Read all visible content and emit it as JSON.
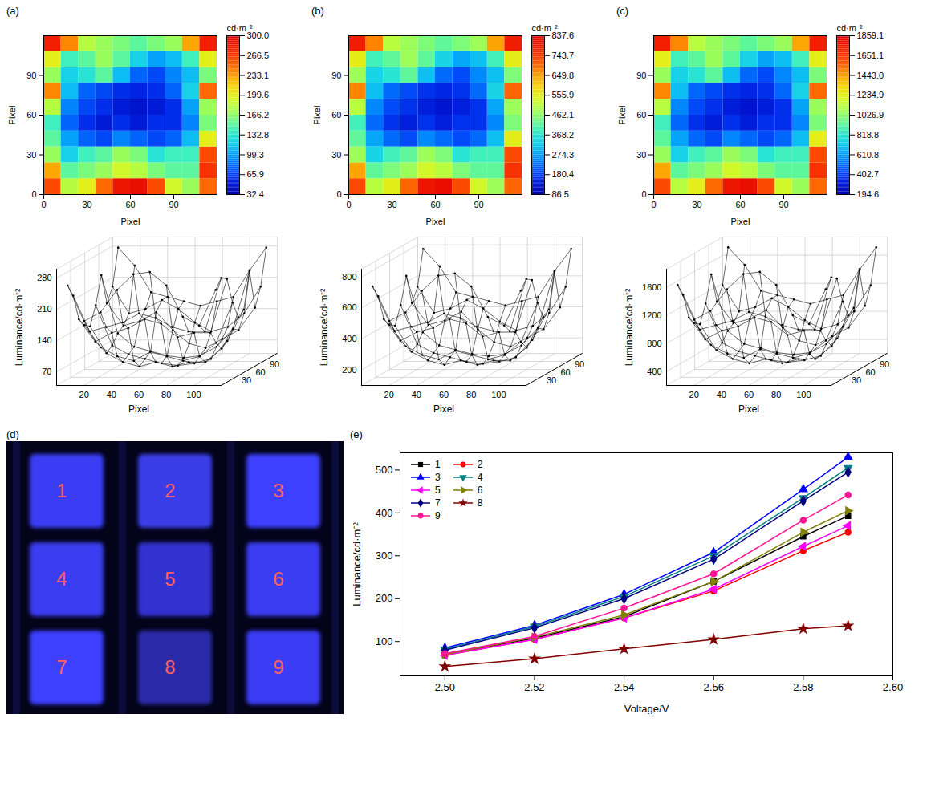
{
  "chart_data": [
    {
      "panel": "(a)",
      "type": "heatmap",
      "xlabel": "Pixel",
      "ylabel": "Pixel",
      "xlim": [
        0,
        120
      ],
      "ylim": [
        0,
        120
      ],
      "xticks": [
        0,
        30,
        60,
        90
      ],
      "yticks": [
        0,
        30,
        60,
        90
      ],
      "x": [
        6,
        18,
        30,
        42,
        54,
        66,
        78,
        90,
        102,
        114
      ],
      "y": [
        6,
        18,
        30,
        42,
        54,
        66,
        78,
        90,
        102,
        114
      ],
      "z": [
        [
          260,
          180,
          200,
          250,
          285,
          290,
          260,
          190,
          170,
          250
        ],
        [
          230,
          150,
          160,
          170,
          190,
          180,
          160,
          150,
          150,
          270
        ],
        [
          170,
          120,
          140,
          150,
          170,
          160,
          130,
          140,
          140,
          260
        ],
        [
          150,
          100,
          80,
          70,
          90,
          80,
          70,
          80,
          110,
          200
        ],
        [
          140,
          80,
          60,
          50,
          60,
          50,
          60,
          60,
          90,
          160
        ],
        [
          180,
          90,
          70,
          60,
          50,
          45,
          50,
          60,
          100,
          170
        ],
        [
          240,
          110,
          80,
          70,
          60,
          55,
          60,
          80,
          120,
          250
        ],
        [
          170,
          120,
          130,
          150,
          110,
          80,
          70,
          90,
          110,
          160
        ],
        [
          200,
          140,
          150,
          170,
          150,
          120,
          100,
          110,
          140,
          200
        ],
        [
          280,
          240,
          180,
          170,
          160,
          150,
          160,
          170,
          230,
          280
        ]
      ],
      "colorbar": {
        "label": "cd·m⁻²",
        "range": [
          32.4,
          300
        ],
        "ticks": [
          32.4,
          65.9,
          99.3,
          132.8,
          166.2,
          199.6,
          233.1,
          266.5,
          {
            "value": 300,
            "label": "300.0"
          }
        ]
      },
      "scatter3d": {
        "xlabel": "Pixel",
        "zlabel": "Luminance/cd·m⁻²",
        "xlim": [
          0,
          120
        ],
        "ylim": [
          0,
          120
        ],
        "zlim": [
          40,
          300
        ],
        "xticks": [
          20,
          40,
          60,
          80,
          100
        ],
        "yticks": [
          30,
          60,
          90
        ],
        "zticks": [
          70,
          140,
          210,
          280
        ]
      }
    },
    {
      "panel": "(b)",
      "type": "heatmap",
      "xlabel": "Pixel",
      "ylabel": "Pixel",
      "xlim": [
        0,
        120
      ],
      "ylim": [
        0,
        120
      ],
      "xticks": [
        0,
        30,
        60,
        90
      ],
      "yticks": [
        0,
        30,
        60,
        90
      ],
      "x": [
        6,
        18,
        30,
        42,
        54,
        66,
        78,
        90,
        102,
        114
      ],
      "y": [
        6,
        18,
        30,
        42,
        54,
        66,
        78,
        90,
        102,
        114
      ],
      "z": [
        [
          728,
          504,
          560,
          700,
          798,
          812,
          728,
          532,
          476,
          700
        ],
        [
          644,
          420,
          448,
          476,
          532,
          504,
          448,
          420,
          420,
          756
        ],
        [
          476,
          336,
          392,
          420,
          476,
          448,
          364,
          392,
          392,
          728
        ],
        [
          420,
          280,
          224,
          196,
          252,
          224,
          196,
          224,
          308,
          560
        ],
        [
          392,
          224,
          168,
          140,
          168,
          140,
          168,
          168,
          252,
          448
        ],
        [
          504,
          252,
          196,
          168,
          140,
          126,
          140,
          168,
          280,
          476
        ],
        [
          672,
          308,
          224,
          196,
          168,
          154,
          168,
          224,
          336,
          700
        ],
        [
          476,
          336,
          364,
          420,
          308,
          224,
          196,
          252,
          308,
          448
        ],
        [
          560,
          392,
          420,
          476,
          420,
          336,
          280,
          308,
          392,
          560
        ],
        [
          784,
          672,
          504,
          476,
          448,
          420,
          448,
          476,
          644,
          784
        ]
      ],
      "colorbar": {
        "label": "cd·m⁻²",
        "range": [
          86.5,
          837.6
        ],
        "ticks": [
          86.5,
          180.4,
          274.3,
          368.2,
          462.1,
          555.9,
          649.8,
          743.7,
          837.6
        ]
      },
      "scatter3d": {
        "xlabel": "Pixel",
        "zlabel": "Luminance/cd·m⁻²",
        "xlim": [
          0,
          120
        ],
        "ylim": [
          0,
          120
        ],
        "zlim": [
          100,
          850
        ],
        "xticks": [
          20,
          40,
          60,
          80,
          100
        ],
        "yticks": [
          30,
          60,
          90
        ],
        "zticks": [
          200,
          400,
          600,
          800
        ]
      }
    },
    {
      "panel": "(c)",
      "type": "heatmap",
      "xlabel": "Pixel",
      "ylabel": "Pixel",
      "xlim": [
        0,
        120
      ],
      "ylim": [
        0,
        120
      ],
      "xticks": [
        0,
        30,
        60,
        90
      ],
      "yticks": [
        0,
        30,
        60,
        90
      ],
      "x": [
        6,
        18,
        30,
        42,
        54,
        66,
        78,
        90,
        102,
        114
      ],
      "y": [
        6,
        18,
        30,
        42,
        54,
        66,
        78,
        90,
        102,
        114
      ],
      "z": [
        [
          1612,
          1116,
          1240,
          1550,
          1767,
          1798,
          1612,
          1178,
          1054,
          1550
        ],
        [
          1426,
          930,
          992,
          1054,
          1178,
          1116,
          992,
          930,
          930,
          1674
        ],
        [
          1054,
          744,
          868,
          930,
          1054,
          992,
          806,
          868,
          868,
          1612
        ],
        [
          930,
          620,
          496,
          434,
          558,
          496,
          434,
          496,
          682,
          1240
        ],
        [
          868,
          496,
          372,
          310,
          372,
          310,
          372,
          372,
          558,
          992
        ],
        [
          1116,
          558,
          434,
          372,
          310,
          279,
          310,
          372,
          620,
          1054
        ],
        [
          1488,
          682,
          496,
          434,
          372,
          341,
          372,
          496,
          744,
          1550
        ],
        [
          1054,
          744,
          806,
          930,
          682,
          496,
          434,
          558,
          682,
          992
        ],
        [
          1240,
          868,
          930,
          1054,
          930,
          744,
          620,
          682,
          868,
          1240
        ],
        [
          1736,
          1488,
          1116,
          1054,
          992,
          930,
          992,
          1054,
          1426,
          1736
        ]
      ],
      "colorbar": {
        "label": "cd·m⁻²",
        "range": [
          194.6,
          1859.1
        ],
        "ticks": [
          194.6,
          402.7,
          610.8,
          818.8,
          1026.9,
          1234.9,
          {
            "value": 1443,
            "label": "1443.0"
          },
          1651.1,
          1859.1
        ]
      },
      "scatter3d": {
        "xlabel": "Pixel",
        "zlabel": "Luminance/cd·m⁻²",
        "xlim": [
          0,
          120
        ],
        "ylim": [
          0,
          120
        ],
        "zlim": [
          200,
          1860
        ],
        "xticks": [
          20,
          40,
          60,
          80,
          100
        ],
        "yticks": [
          30,
          60,
          90
        ],
        "zticks": [
          400,
          800,
          1200,
          1600
        ]
      }
    },
    {
      "panel": "(d)",
      "type": "image",
      "labels": [
        "1",
        "2",
        "3",
        "4",
        "5",
        "6",
        "7",
        "8",
        "9"
      ],
      "colors": [
        "#3a3cf5",
        "#3a3ce8",
        "#3c40ff",
        "#3a3ef0",
        "#3032d0",
        "#3a3ef2",
        "#3c40ff",
        "#2a2ca8",
        "#3a3ef5"
      ]
    },
    {
      "panel": "(e)",
      "type": "line",
      "xlabel": "Voltage/V",
      "ylabel": "Luminance/cd·m⁻²",
      "x": [
        2.5,
        2.52,
        2.54,
        2.56,
        2.58,
        2.59
      ],
      "xlim": [
        2.49,
        2.6
      ],
      "xticks": [
        {
          "value": 2.5,
          "label": "2.50"
        },
        2.52,
        2.54,
        2.56,
        2.58,
        {
          "value": 2.6,
          "label": "2.60"
        }
      ],
      "ylim": [
        20,
        540
      ],
      "yticks": [
        100,
        200,
        300,
        400,
        500
      ],
      "legend": "top-left",
      "series": [
        {
          "name": "1",
          "color": "#000000",
          "marker": "square",
          "values": [
            70,
            108,
            158,
            240,
            345,
            393
          ]
        },
        {
          "name": "2",
          "color": "#ff0000",
          "marker": "circle",
          "values": [
            68,
            105,
            155,
            218,
            312,
            355
          ]
        },
        {
          "name": "3",
          "color": "#0000ff",
          "marker": "triangle-up",
          "values": [
            85,
            138,
            210,
            308,
            455,
            530
          ]
        },
        {
          "name": "4",
          "color": "#008080",
          "marker": "triangle-down",
          "values": [
            82,
            135,
            205,
            300,
            435,
            505
          ]
        },
        {
          "name": "5",
          "color": "#ff00ff",
          "marker": "triangle-left",
          "values": [
            68,
            105,
            155,
            222,
            322,
            370
          ]
        },
        {
          "name": "6",
          "color": "#808000",
          "marker": "triangle-right",
          "values": [
            70,
            110,
            162,
            240,
            355,
            405
          ]
        },
        {
          "name": "7",
          "color": "#000080",
          "marker": "diamond",
          "values": [
            80,
            132,
            200,
            292,
            428,
            495
          ]
        },
        {
          "name": "8",
          "color": "#800000",
          "marker": "star",
          "values": [
            42,
            60,
            83,
            105,
            130,
            137
          ]
        },
        {
          "name": "9",
          "color": "#ff1493",
          "marker": "circle",
          "values": [
            72,
            112,
            178,
            258,
            383,
            442
          ]
        }
      ]
    }
  ]
}
